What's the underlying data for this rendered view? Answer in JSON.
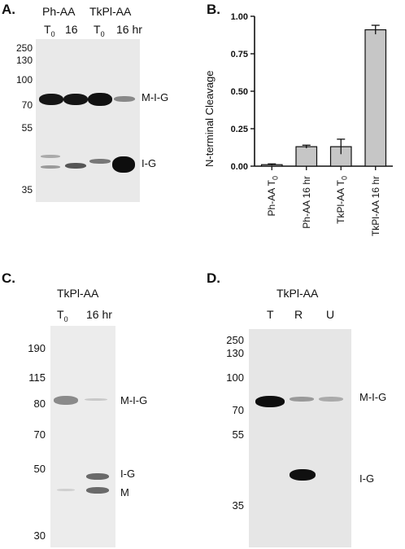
{
  "panel_A": {
    "label": "A.",
    "group1": "Ph-AA",
    "group2": "TkPl-AA",
    "lanes": [
      {
        "main": "T",
        "sub": "0"
      },
      {
        "main": "16",
        "sub": ""
      },
      {
        "main": "T",
        "sub": "0"
      },
      {
        "main": "16 hr",
        "sub": ""
      }
    ],
    "markers": [
      "250",
      "130",
      "100",
      "70",
      "55",
      "35"
    ],
    "band_labels": [
      "M-I-G",
      "I-G"
    ]
  },
  "panel_B": {
    "label": "B.",
    "chart_data": {
      "type": "bar",
      "ylabel": "N-terminal Cleavage",
      "categories": [
        "Ph-AA T0",
        "Ph-AA 16 hr",
        "TkPl-AA T0",
        "TkPl-AA 16 hr"
      ],
      "values": [
        0.01,
        0.13,
        0.13,
        0.91
      ],
      "errors": [
        0.005,
        0.01,
        0.05,
        0.03
      ],
      "ylim": [
        0,
        1.0
      ],
      "yticks": [
        "0.00",
        "0.25",
        "0.50",
        "0.75",
        "1.00"
      ],
      "bar_color": "#c6c6c6"
    },
    "xtick_labels": [
      {
        "main": "Ph-AA T",
        "sub": "0"
      },
      {
        "main": "Ph-AA 16 hr",
        "sub": ""
      },
      {
        "main": "TkPl-AA T",
        "sub": "0"
      },
      {
        "main": "TkPl-AA 16 hr",
        "sub": ""
      }
    ]
  },
  "panel_C": {
    "label": "C.",
    "title": "TkPl-AA",
    "lanes": [
      {
        "main": "T",
        "sub": "0"
      },
      {
        "main": "16 hr",
        "sub": ""
      }
    ],
    "markers": [
      "190",
      "115",
      "80",
      "70",
      "50",
      "30"
    ],
    "band_labels": [
      "M-I-G",
      "I-G",
      "M"
    ]
  },
  "panel_D": {
    "label": "D.",
    "title": "TkPl-AA",
    "lanes": [
      "T",
      "R",
      "U"
    ],
    "markers": [
      "250",
      "130",
      "100",
      "70",
      "55",
      "35"
    ],
    "band_labels": [
      "M-I-G",
      "I-G"
    ]
  }
}
